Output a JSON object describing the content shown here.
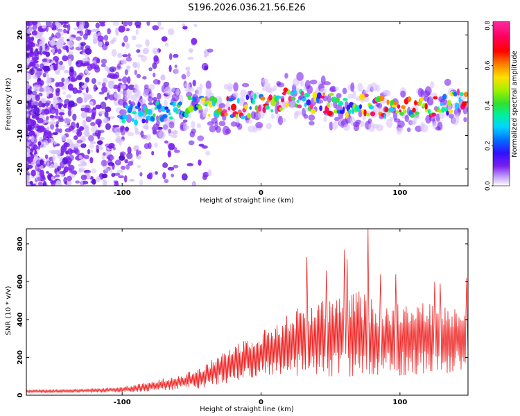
{
  "title": "S196.2026.036.21.56.E26",
  "colors": {
    "snr_line": "#ee2222",
    "axis": "#000000",
    "speckle": "#7a1ff0",
    "speckle_dark": "#5a10d8",
    "speckle_light": "#d9c4fb"
  },
  "chart_data": [
    {
      "type": "heatmap",
      "name": "spectrogram",
      "xlabel": "Height of straight line (km)",
      "ylabel": "Frequency (Hz)",
      "xlim": [
        -169,
        149
      ],
      "ylim": [
        -25,
        24
      ],
      "xticks": [
        -100,
        0,
        100
      ],
      "yticks": [
        -20,
        -10,
        0,
        10,
        20
      ],
      "colorbar": {
        "label": "Normalized spectral amplitude",
        "range": [
          0,
          0.82
        ],
        "ticks": [
          0.0,
          0.2,
          0.4,
          0.6,
          0.8
        ],
        "tick_labels": [
          "0.0",
          "0.2",
          "0.4",
          "0.6",
          "0.8"
        ],
        "colormap": [
          "#ffffff",
          "#c9a8ff",
          "#7a1ff0",
          "#3010ff",
          "#0070ff",
          "#00d5ff",
          "#00f0a0",
          "#30e030",
          "#a0f000",
          "#ffe000",
          "#ff8000",
          "#ff0000",
          "#ff0060",
          "#ff2aa0"
        ]
      },
      "signal_band_center_hz": [
        {
          "x": -100,
          "y": -3
        },
        {
          "x": -80,
          "y": -4
        },
        {
          "x": -60,
          "y": -2
        },
        {
          "x": -40,
          "y": -1
        },
        {
          "x": -20,
          "y": -2
        },
        {
          "x": 0,
          "y": -1
        },
        {
          "x": 20,
          "y": 1
        },
        {
          "x": 40,
          "y": 0
        },
        {
          "x": 60,
          "y": -1
        },
        {
          "x": 80,
          "y": -1
        },
        {
          "x": 100,
          "y": -2
        },
        {
          "x": 120,
          "y": -2
        },
        {
          "x": 140,
          "y": 0
        }
      ],
      "noise_region_x": [
        -169,
        -70
      ]
    },
    {
      "type": "line",
      "name": "snr",
      "xlabel": "Height of straight line (km)",
      "ylabel": "SNR (10 * v/v)",
      "xlim": [
        -169,
        149
      ],
      "ylim": [
        0,
        880
      ],
      "xticks": [
        -100,
        0,
        100
      ],
      "yticks": [
        0,
        200,
        400,
        600,
        800
      ],
      "series": [
        {
          "name": "SNR",
          "envelope_x": [
            -169,
            -140,
            -120,
            -100,
            -80,
            -60,
            -50,
            -40,
            -30,
            -20,
            -10,
            0,
            10,
            20,
            30,
            40,
            50,
            60,
            70,
            80,
            90,
            100,
            110,
            120,
            130,
            140,
            149
          ],
          "envelope_mean": [
            20,
            22,
            25,
            30,
            45,
            70,
            80,
            100,
            140,
            170,
            200,
            220,
            240,
            270,
            290,
            300,
            300,
            310,
            320,
            300,
            290,
            300,
            310,
            300,
            290,
            300,
            300
          ],
          "envelope_amp": [
            10,
            10,
            12,
            15,
            25,
            40,
            50,
            60,
            80,
            100,
            110,
            120,
            140,
            160,
            200,
            220,
            200,
            220,
            240,
            210,
            180,
            200,
            200,
            190,
            180,
            180,
            200
          ],
          "peaks": [
            {
              "x": 33,
              "y": 730
            },
            {
              "x": 47,
              "y": 660
            },
            {
              "x": 60,
              "y": 770
            },
            {
              "x": 62,
              "y": 720
            },
            {
              "x": 77,
              "y": 880
            },
            {
              "x": 86,
              "y": 640
            },
            {
              "x": 97,
              "y": 640
            },
            {
              "x": 125,
              "y": 600
            },
            {
              "x": 129,
              "y": 590
            },
            {
              "x": 148,
              "y": 620
            }
          ]
        }
      ]
    }
  ]
}
